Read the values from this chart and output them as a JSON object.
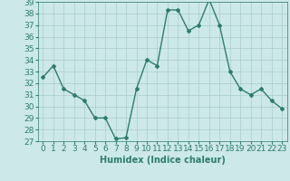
{
  "x": [
    0,
    1,
    2,
    3,
    4,
    5,
    6,
    7,
    8,
    9,
    10,
    11,
    12,
    13,
    14,
    15,
    16,
    17,
    18,
    19,
    20,
    21,
    22,
    23
  ],
  "y": [
    32.5,
    33.5,
    31.5,
    31.0,
    30.5,
    29.0,
    29.0,
    27.2,
    27.3,
    31.5,
    34.0,
    33.5,
    38.3,
    38.3,
    36.5,
    37.0,
    39.2,
    37.0,
    33.0,
    31.5,
    31.0,
    31.5,
    30.5,
    29.8
  ],
  "line_color": "#2e7d6e",
  "marker": "D",
  "marker_size": 2,
  "bg_color": "#cce8e8",
  "grid_color": "#aacccc",
  "xlabel": "Humidex (Indice chaleur)",
  "ylim": [
    27,
    39
  ],
  "yticks": [
    27,
    28,
    29,
    30,
    31,
    32,
    33,
    34,
    35,
    36,
    37,
    38,
    39
  ],
  "xticks": [
    0,
    1,
    2,
    3,
    4,
    5,
    6,
    7,
    8,
    9,
    10,
    11,
    12,
    13,
    14,
    15,
    16,
    17,
    18,
    19,
    20,
    21,
    22,
    23
  ],
  "xlabel_fontsize": 7,
  "tick_fontsize": 6.5,
  "line_width": 1.0
}
